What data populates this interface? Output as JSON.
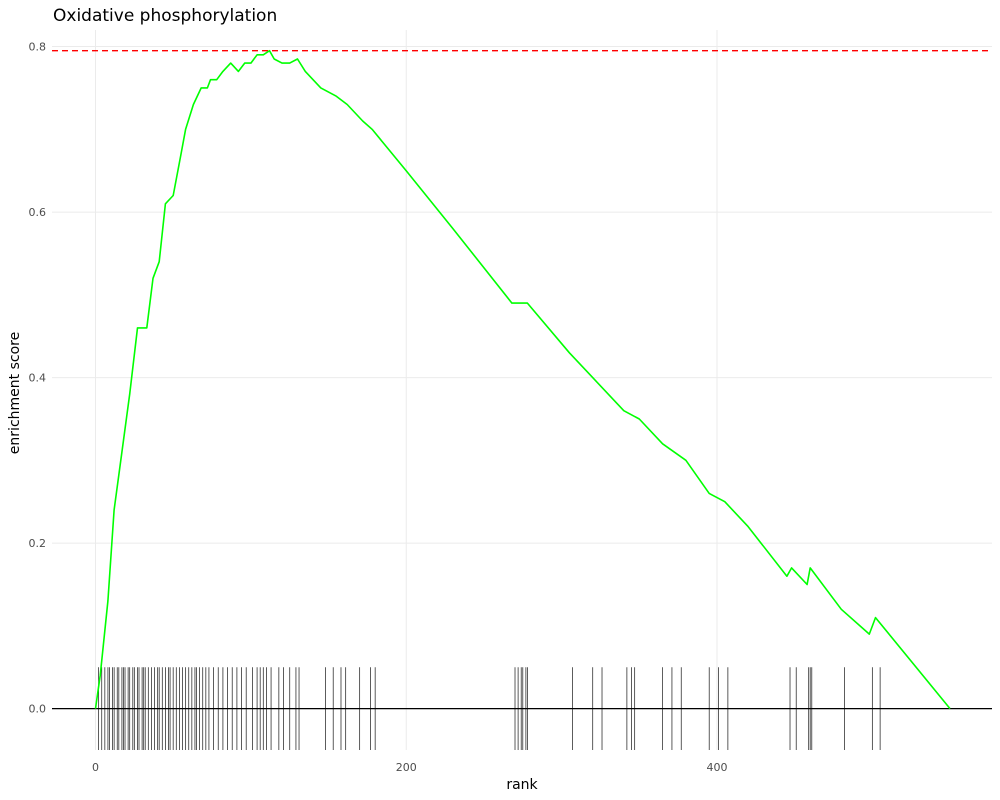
{
  "chart_data": {
    "type": "line",
    "title": "Oxidative phosphorylation",
    "xlabel": "rank",
    "ylabel": "enrichment score",
    "xlim": [
      -28,
      577
    ],
    "ylim": [
      -0.05,
      0.82
    ],
    "x_ticks": [
      0,
      200,
      400
    ],
    "x_tick_labels": [
      "0",
      "200",
      "400"
    ],
    "y_ticks": [
      0.0,
      0.2,
      0.4,
      0.6,
      0.8
    ],
    "y_tick_labels": [
      "0.0",
      "0.2",
      "0.4",
      "0.6",
      "0.8"
    ],
    "grid": true,
    "legend": "none",
    "max_es": 0.795,
    "colors": {
      "curve": "#00ff00",
      "max_line": "#ff0000",
      "zero_line": "#000000",
      "ticks": "#333333"
    },
    "series": [
      {
        "x": [
          0,
          3,
          8,
          12,
          17,
          22,
          27,
          33,
          37,
          41,
          45,
          50,
          55,
          58,
          63,
          68,
          72,
          74,
          78,
          82,
          87,
          92,
          96,
          100,
          104,
          108,
          112,
          115,
          120,
          125,
          130,
          135,
          145,
          155,
          162,
          172,
          178,
          200,
          230,
          268,
          278,
          305,
          320,
          340,
          350,
          365,
          380,
          395,
          405,
          420,
          445,
          448,
          458,
          460,
          480,
          498,
          502,
          550
        ],
        "y": [
          0.0,
          0.04,
          0.13,
          0.24,
          0.31,
          0.38,
          0.46,
          0.46,
          0.52,
          0.54,
          0.61,
          0.62,
          0.67,
          0.7,
          0.73,
          0.75,
          0.75,
          0.76,
          0.76,
          0.77,
          0.78,
          0.77,
          0.78,
          0.78,
          0.79,
          0.79,
          0.795,
          0.785,
          0.78,
          0.78,
          0.785,
          0.77,
          0.75,
          0.74,
          0.73,
          0.71,
          0.7,
          0.65,
          0.58,
          0.49,
          0.49,
          0.43,
          0.4,
          0.36,
          0.35,
          0.32,
          0.3,
          0.26,
          0.25,
          0.22,
          0.16,
          0.17,
          0.15,
          0.17,
          0.12,
          0.09,
          0.11,
          0.0
        ]
      }
    ],
    "hit_ranks": [
      2,
      4,
      6,
      8,
      9,
      11,
      12,
      14,
      15,
      17,
      18,
      19,
      21,
      22,
      24,
      25,
      27,
      28,
      30,
      31,
      32,
      34,
      36,
      38,
      40,
      41,
      43,
      45,
      47,
      48,
      50,
      52,
      54,
      56,
      58,
      60,
      62,
      64,
      65,
      67,
      69,
      71,
      73,
      76,
      79,
      82,
      85,
      88,
      91,
      94,
      97,
      101,
      104,
      106,
      108,
      110,
      113,
      118,
      121,
      125,
      129,
      131,
      148,
      153,
      158,
      161,
      170,
      177,
      180,
      270,
      272,
      274,
      275,
      277,
      278,
      307,
      320,
      326,
      342,
      345,
      347,
      365,
      371,
      377,
      395,
      401,
      407,
      447,
      451,
      459,
      460,
      461,
      482,
      500,
      505
    ]
  }
}
